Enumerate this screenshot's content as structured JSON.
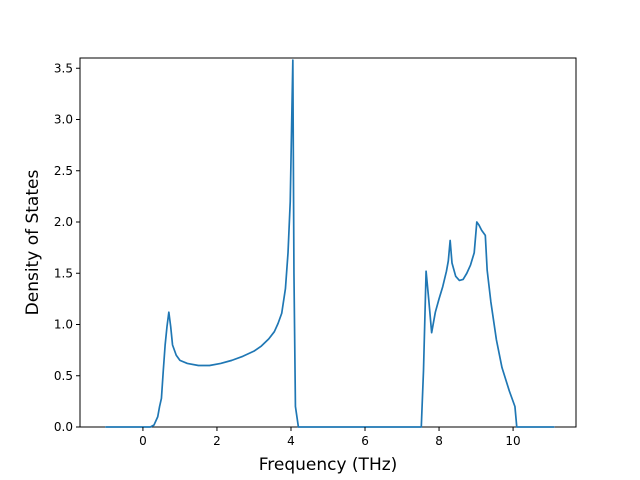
{
  "chart_data": {
    "type": "line",
    "title": "",
    "xlabel": "Frequency (THz)",
    "ylabel": "Density of States",
    "xlim": [
      -1.7,
      11.7
    ],
    "ylim": [
      0,
      3.6
    ],
    "x_ticks": [
      0,
      2,
      4,
      6,
      8,
      10
    ],
    "x_tick_labels": [
      "0",
      "2",
      "4",
      "6",
      "8",
      "10"
    ],
    "y_ticks": [
      0.0,
      0.5,
      1.0,
      1.5,
      2.0,
      2.5,
      3.0,
      3.5
    ],
    "y_tick_labels": [
      "0.0",
      "0.5",
      "1.0",
      "1.5",
      "2.0",
      "2.5",
      "3.0",
      "3.5"
    ],
    "grid": false,
    "series": [
      {
        "color": "#1f77b4",
        "x": [
          -1.0,
          0.2,
          0.3,
          0.4,
          0.45,
          0.5,
          0.55,
          0.6,
          0.65,
          0.7,
          0.75,
          0.8,
          0.9,
          1.0,
          1.2,
          1.5,
          1.8,
          2.1,
          2.4,
          2.7,
          3.0,
          3.2,
          3.4,
          3.55,
          3.65,
          3.75,
          3.85,
          3.92,
          3.98,
          4.02,
          4.05,
          4.08,
          4.12,
          4.2,
          5.5,
          7.52,
          7.58,
          7.65,
          7.72,
          7.8,
          7.9,
          8.0,
          8.1,
          8.2,
          8.25,
          8.3,
          8.35,
          8.45,
          8.55,
          8.65,
          8.75,
          8.85,
          8.95,
          9.02,
          9.08,
          9.15,
          9.25,
          9.3,
          9.4,
          9.55,
          9.7,
          9.9,
          10.05,
          10.1,
          11.1
        ],
        "y": [
          0.0,
          0.0,
          0.02,
          0.1,
          0.2,
          0.28,
          0.55,
          0.8,
          0.98,
          1.12,
          0.98,
          0.8,
          0.7,
          0.65,
          0.62,
          0.6,
          0.6,
          0.62,
          0.65,
          0.69,
          0.74,
          0.79,
          0.86,
          0.93,
          1.01,
          1.11,
          1.35,
          1.7,
          2.2,
          3.0,
          3.58,
          1.5,
          0.2,
          0.0,
          0.0,
          0.0,
          0.55,
          1.52,
          1.25,
          0.92,
          1.12,
          1.25,
          1.37,
          1.52,
          1.62,
          1.82,
          1.6,
          1.47,
          1.43,
          1.44,
          1.5,
          1.58,
          1.7,
          2.0,
          1.97,
          1.92,
          1.87,
          1.53,
          1.22,
          0.85,
          0.58,
          0.35,
          0.2,
          0.0,
          0.0
        ]
      }
    ]
  }
}
